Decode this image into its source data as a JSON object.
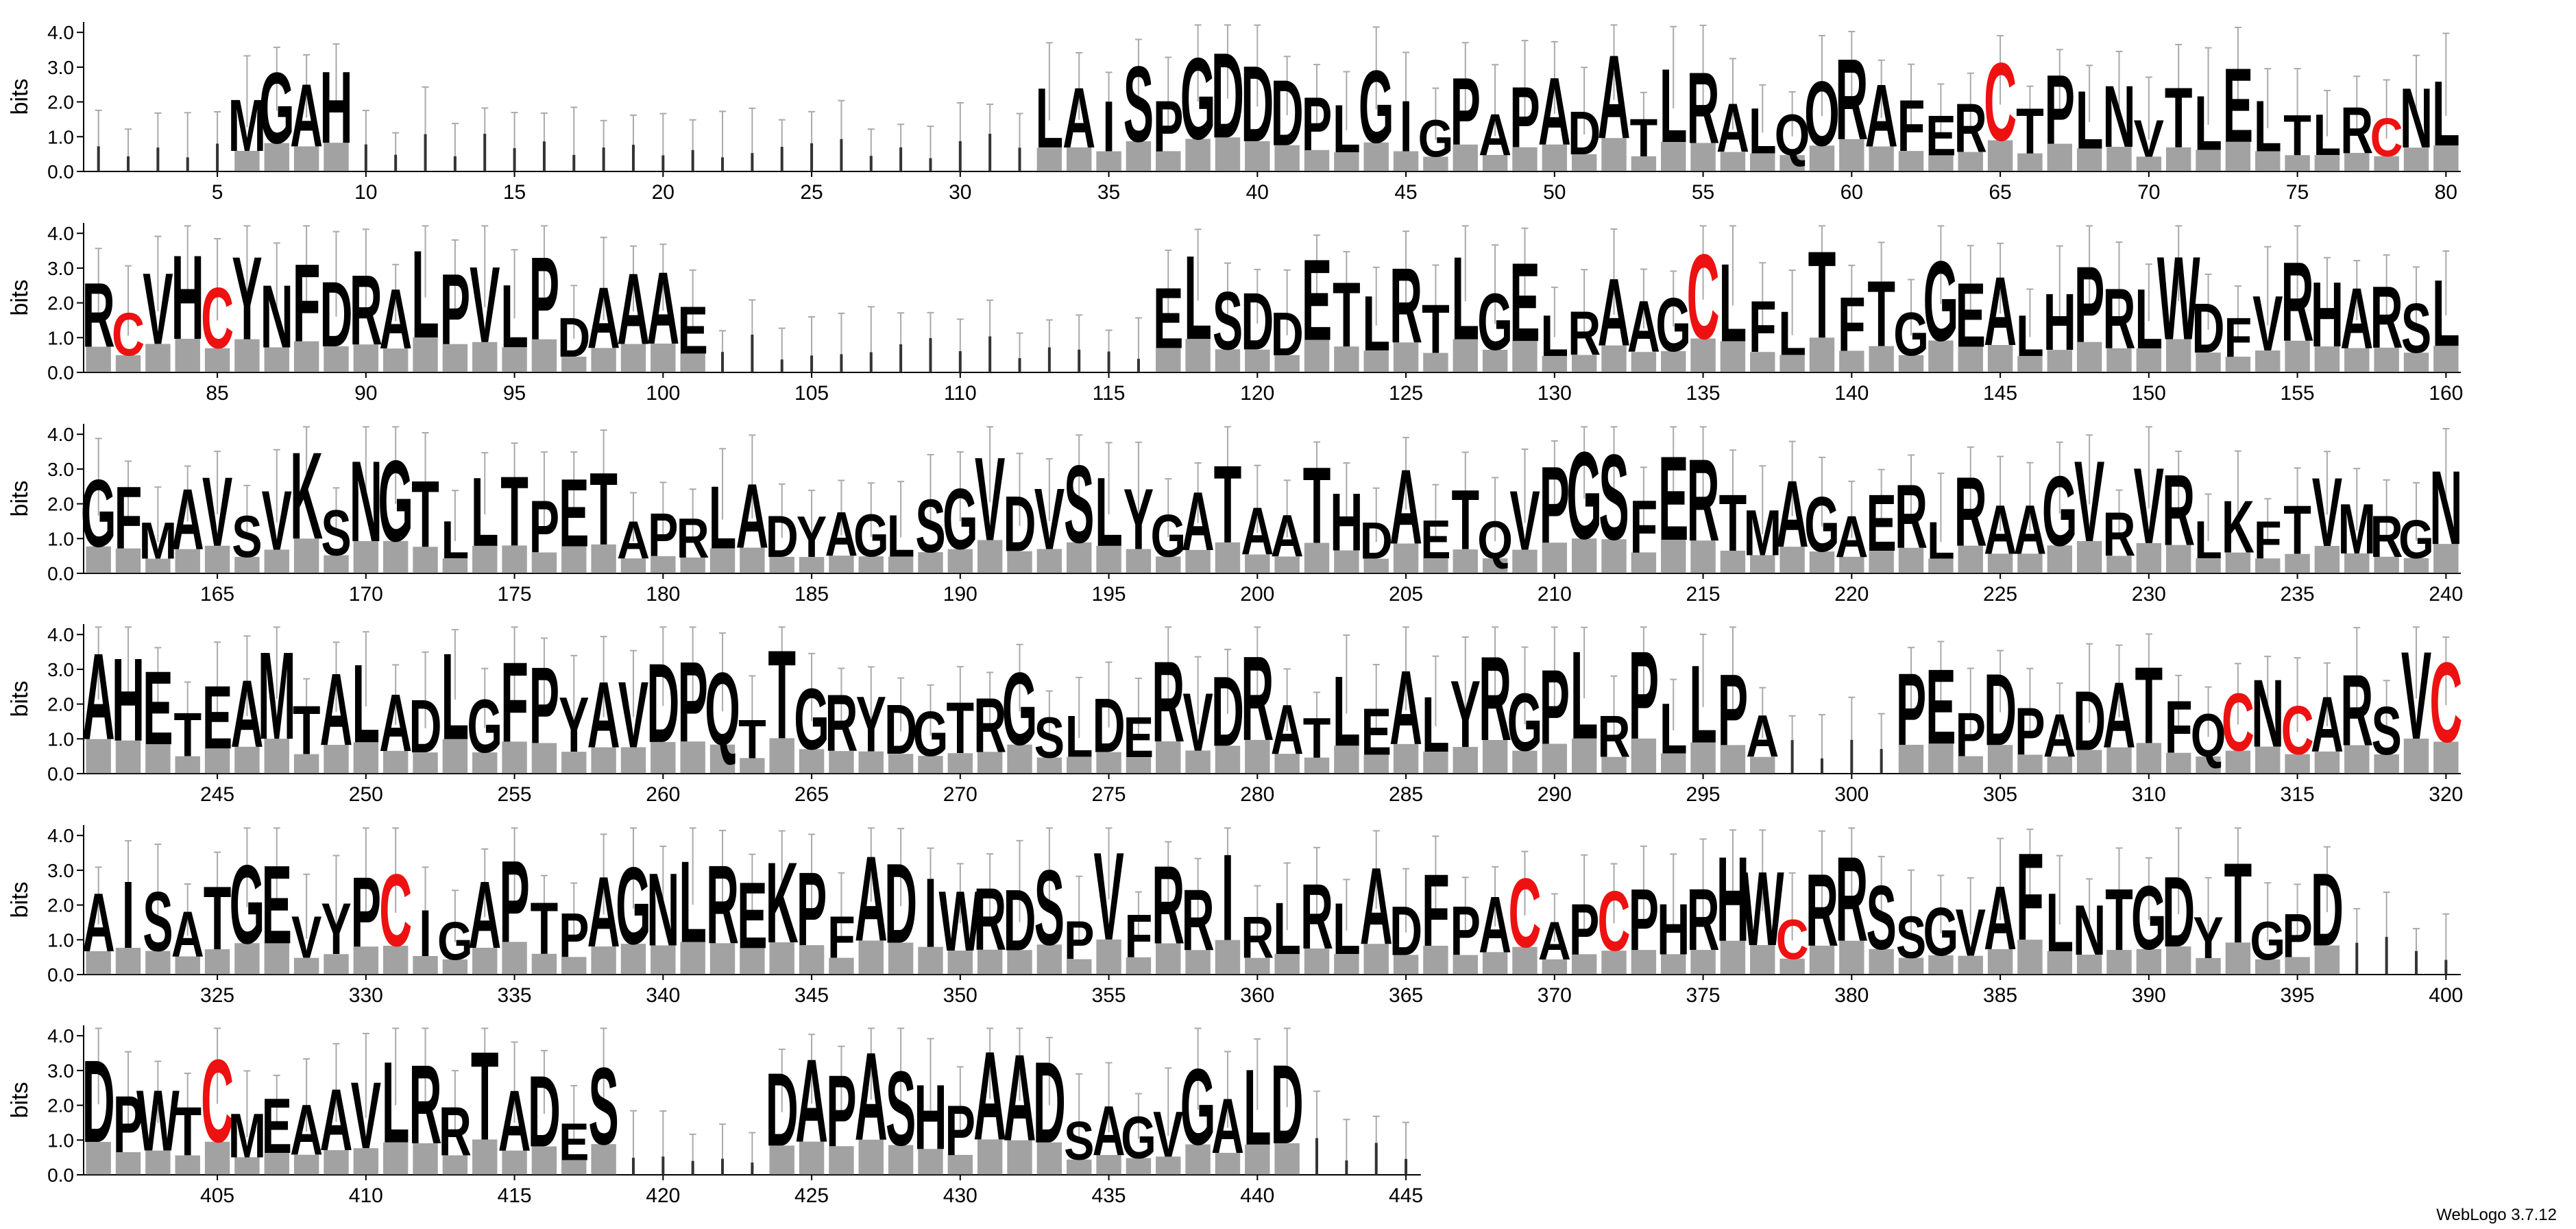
{
  "chart_data": {
    "type": "sequence-logo",
    "ylabel": "bits",
    "ylim": [
      0,
      4.3
    ],
    "yticks": [
      0.0,
      1.0,
      2.0,
      3.0,
      4.0
    ],
    "ytick_labels": [
      "0.0",
      "1.0",
      "2.0",
      "3.0",
      "4.0"
    ],
    "start_position": 1,
    "end_position": 445,
    "positions_per_row": 80,
    "x_tick_interval": 5,
    "error_bars": true,
    "color_scheme": {
      "C": "#ee1111",
      "default": "#000000"
    },
    "consensus_residues": [
      "",
      "",
      "",
      "",
      "",
      "M",
      "G",
      "A",
      "H",
      "",
      "",
      "",
      "",
      "",
      "",
      "",
      "",
      "",
      "",
      "",
      "",
      "",
      "",
      "",
      "",
      "",
      "",
      "",
      "",
      "",
      "",
      "",
      "L",
      "A",
      "I",
      "S",
      "P",
      "G",
      "D",
      "D",
      "D",
      "P",
      "L",
      "G",
      "I",
      "G",
      "P",
      "A",
      "P",
      "A",
      "D",
      "A",
      "T",
      "L",
      "R",
      "A",
      "L",
      "Q",
      "O",
      "R",
      "A",
      "F",
      "E",
      "R",
      "C",
      "T",
      "P",
      "L",
      "N",
      "V",
      "T",
      "L",
      "E",
      "L",
      "T",
      "L",
      "R",
      "C",
      "N",
      "L",
      "R",
      "C",
      "V",
      "H",
      "C",
      "Y",
      "N",
      "F",
      "D",
      "R",
      "A",
      "L",
      "P",
      "V",
      "L",
      "P",
      "D",
      "A",
      "A",
      "A",
      "E",
      "",
      "",
      "",
      "",
      "",
      "",
      "",
      "",
      "",
      "",
      "",
      "",
      "",
      "",
      "",
      "E",
      "L",
      "S",
      "D",
      "D",
      "E",
      "T",
      "L",
      "R",
      "T",
      "L",
      "G",
      "E",
      "L",
      "R",
      "A",
      "A",
      "G",
      "C",
      "L",
      "F",
      "L",
      "T",
      "F",
      "T",
      "G",
      "G",
      "E",
      "A",
      "L",
      "H",
      "P",
      "R",
      "L",
      "W",
      "D",
      "F",
      "V",
      "R",
      "H",
      "A",
      "R",
      "S",
      "L",
      "G",
      "F",
      "M",
      "A",
      "V",
      "S",
      "V",
      "K",
      "S",
      "N",
      "G",
      "T",
      "L",
      "L",
      "T",
      "P",
      "E",
      "T",
      "A",
      "P",
      "R",
      "L",
      "A",
      "D",
      "Y",
      "A",
      "G",
      "L",
      "S",
      "G",
      "V",
      "D",
      "V",
      "S",
      "L",
      "Y",
      "G",
      "A",
      "T",
      "A",
      "A",
      "T",
      "H",
      "D",
      "A",
      "E",
      "T",
      "Q",
      "V",
      "P",
      "G",
      "S",
      "F",
      "E",
      "R",
      "T",
      "M",
      "A",
      "G",
      "A",
      "E",
      "R",
      "L",
      "R",
      "A",
      "A",
      "G",
      "V",
      "R",
      "V",
      "R",
      "L",
      "K",
      "F",
      "T",
      "V",
      "M",
      "R",
      "G",
      "N",
      "A",
      "H",
      "E",
      "T",
      "E",
      "A",
      "M",
      "T",
      "A",
      "L",
      "A",
      "D",
      "L",
      "G",
      "F",
      "P",
      "Y",
      "A",
      "V",
      "D",
      "P",
      "Q",
      "T",
      "T",
      "G",
      "R",
      "Y",
      "D",
      "G",
      "T",
      "R",
      "G",
      "S",
      "L",
      "D",
      "E",
      "R",
      "V",
      "D",
      "R",
      "A",
      "T",
      "L",
      "E",
      "A",
      "L",
      "Y",
      "R",
      "G",
      "P",
      "L",
      "R",
      "P",
      "L",
      "L",
      "P",
      "A",
      "",
      "",
      "",
      "",
      "P",
      "E",
      "P",
      "D",
      "P",
      "A",
      "D",
      "A",
      "T",
      "F",
      "Q",
      "C",
      "N",
      "C",
      "A",
      "R",
      "S",
      "V",
      "C",
      "A",
      "I",
      "S",
      "A",
      "T",
      "G",
      "E",
      "V",
      "Y",
      "P",
      "C",
      "I",
      "G",
      "A",
      "P",
      "T",
      "P",
      "A",
      "G",
      "N",
      "L",
      "R",
      "E",
      "K",
      "P",
      "F",
      "A",
      "D",
      "I",
      "W",
      "R",
      "D",
      "S",
      "P",
      "V",
      "F",
      "R",
      "R",
      "I",
      "R",
      "L",
      "R",
      "L",
      "A",
      "D",
      "F",
      "P",
      "A",
      "C",
      "A",
      "P",
      "C",
      "P",
      "H",
      "R",
      "H",
      "W",
      "C",
      "R",
      "R",
      "S",
      "S",
      "G",
      "V",
      "A",
      "F",
      "L",
      "N",
      "T",
      "G",
      "D",
      "Y",
      "T",
      "G",
      "P",
      "D",
      "",
      "",
      "",
      "",
      "D",
      "P",
      "W",
      "T",
      "C",
      "M",
      "E",
      "A",
      "A",
      "V",
      "L",
      "R",
      "R",
      "T",
      "A",
      "D",
      "E",
      "S",
      "",
      "",
      "",
      "",
      "",
      "D",
      "A",
      "P",
      "A",
      "S",
      "H",
      "P",
      "A",
      "A",
      "D",
      "S",
      "A",
      "G",
      "V",
      "G",
      "A",
      "L",
      "D",
      "",
      "",
      "",
      "",
      ""
    ],
    "annotation": "WebLogo 3.7.12"
  },
  "footer": {
    "version_label": "WebLogo 3.7.12"
  }
}
